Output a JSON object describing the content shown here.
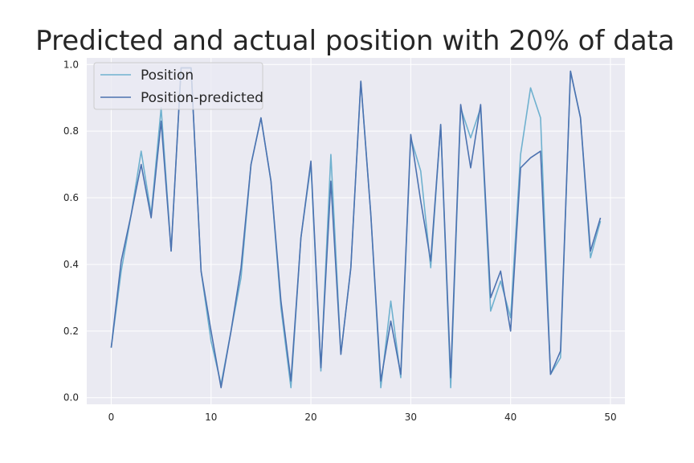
{
  "chart_data": {
    "type": "line",
    "title": "Predicted and actual position with 20% of data",
    "xlabel": "",
    "ylabel": "",
    "xlim": [
      -2.45,
      51.45
    ],
    "ylim": [
      -0.02,
      1.02
    ],
    "xticks": [
      0,
      10,
      20,
      30,
      40,
      50
    ],
    "yticks": [
      0.0,
      0.2,
      0.4,
      0.6,
      0.8,
      1.0
    ],
    "grid": true,
    "legend_position": "upper-left",
    "background": "#eaeaf2",
    "x": [
      0,
      1,
      2,
      3,
      4,
      5,
      6,
      7,
      8,
      9,
      10,
      11,
      12,
      13,
      14,
      15,
      16,
      17,
      18,
      19,
      20,
      21,
      22,
      23,
      24,
      25,
      26,
      27,
      28,
      29,
      30,
      31,
      32,
      33,
      34,
      35,
      36,
      37,
      38,
      39,
      40,
      41,
      42,
      43,
      44,
      45,
      46,
      47,
      48,
      49
    ],
    "series": [
      {
        "name": "Position",
        "color": "#6fb1cf",
        "values": [
          0.15,
          0.38,
          0.55,
          0.74,
          0.55,
          0.87,
          0.44,
          0.99,
          0.99,
          0.38,
          0.17,
          0.04,
          0.2,
          0.36,
          0.7,
          0.84,
          0.65,
          0.27,
          0.03,
          0.48,
          0.7,
          0.08,
          0.73,
          0.13,
          0.39,
          0.95,
          0.55,
          0.03,
          0.29,
          0.06,
          0.78,
          0.68,
          0.39,
          0.82,
          0.03,
          0.87,
          0.78,
          0.87,
          0.26,
          0.35,
          0.24,
          0.73,
          0.93,
          0.84,
          0.07,
          0.12,
          0.98,
          0.84,
          0.42,
          0.53
        ]
      },
      {
        "name": "Position-predicted",
        "color": "#4c72b0",
        "values": [
          0.15,
          0.41,
          0.55,
          0.7,
          0.54,
          0.83,
          0.44,
          0.99,
          0.99,
          0.38,
          0.2,
          0.03,
          0.2,
          0.39,
          0.7,
          0.84,
          0.65,
          0.29,
          0.05,
          0.48,
          0.71,
          0.09,
          0.65,
          0.13,
          0.39,
          0.95,
          0.55,
          0.05,
          0.23,
          0.07,
          0.79,
          0.59,
          0.41,
          0.82,
          0.06,
          0.88,
          0.69,
          0.88,
          0.3,
          0.38,
          0.2,
          0.69,
          0.72,
          0.74,
          0.07,
          0.14,
          0.98,
          0.84,
          0.44,
          0.54
        ]
      }
    ]
  }
}
